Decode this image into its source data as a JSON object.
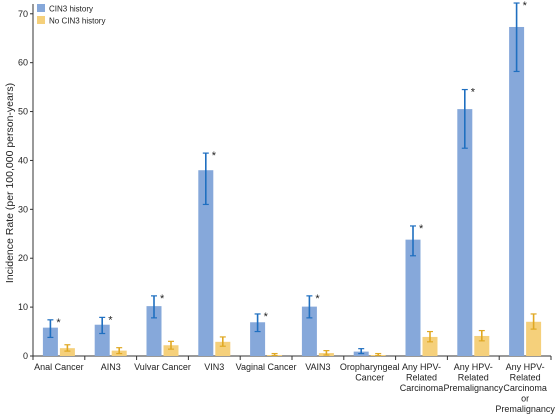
{
  "chart_data": {
    "type": "bar",
    "categories": [
      [
        "Anal Cancer"
      ],
      [
        "AIN3"
      ],
      [
        "Vulvar Cancer"
      ],
      [
        "VIN3"
      ],
      [
        "Vaginal Cancer"
      ],
      [
        "VAIN3"
      ],
      [
        "Oropharyngeal",
        "Cancer"
      ],
      [
        "Any HPV-",
        "Related",
        "Carcinoma"
      ],
      [
        "Any HPV-",
        "Related",
        "Premalignancy"
      ],
      [
        "Any HPV-",
        "Related",
        "Carcinoma",
        "or",
        "Premalignancy"
      ]
    ],
    "series": [
      {
        "name": "CIN3 history",
        "color": "#86a8da",
        "error_color": "#1f6fc0",
        "values": [
          5.8,
          6.4,
          10.2,
          38.0,
          6.9,
          10.1,
          0.9,
          23.8,
          50.5,
          67.3
        ],
        "err_low": [
          3.8,
          4.6,
          7.8,
          31.0,
          5.0,
          7.8,
          0.5,
          20.5,
          42.5,
          58.2
        ],
        "err_high": [
          7.4,
          7.9,
          12.3,
          41.5,
          8.6,
          12.3,
          1.5,
          26.6,
          54.5,
          72.2
        ],
        "significant": [
          true,
          true,
          true,
          true,
          true,
          true,
          false,
          true,
          true,
          true
        ]
      },
      {
        "name": "No CIN3 history",
        "color": "#f5d07b",
        "error_color": "#e0a823",
        "values": [
          1.6,
          1.1,
          2.2,
          2.9,
          0.2,
          0.6,
          0.2,
          3.9,
          4.1,
          7.0
        ],
        "err_low": [
          1.0,
          0.5,
          1.4,
          2.0,
          0.1,
          0.2,
          0.1,
          2.9,
          3.1,
          5.5
        ],
        "err_high": [
          2.3,
          1.7,
          3.0,
          3.9,
          0.5,
          1.1,
          0.5,
          5.0,
          5.2,
          8.6
        ]
      }
    ],
    "ylabel": "Incidence Rate (per 100,000 person-years)",
    "xlabel": "",
    "ylim": [
      0,
      72
    ],
    "yticks": [
      "0",
      "10",
      "20",
      "30",
      "40",
      "50",
      "60",
      "70"
    ],
    "ytick_values": [
      0,
      10,
      20,
      30,
      40,
      50,
      60,
      70
    ],
    "significance_marker": "*",
    "legend_position": "top-left",
    "grid": false
  }
}
